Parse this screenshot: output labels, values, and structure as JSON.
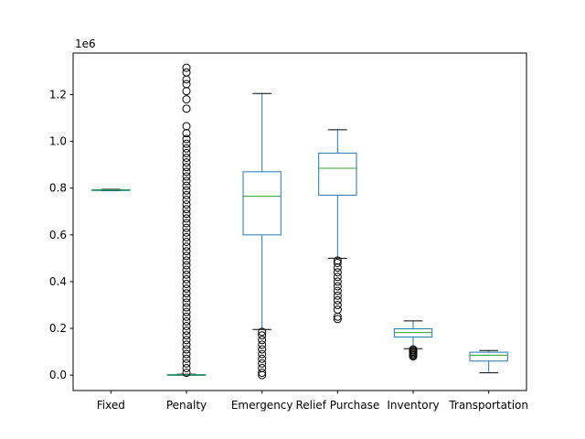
{
  "chart_data": {
    "type": "box",
    "categories": [
      "Fixed",
      "Penalty",
      "Emergency",
      "Relief Purchase",
      "Inventory",
      "Transportation"
    ],
    "y_offset_label": "1e6",
    "yticks": [
      0.0,
      0.2,
      0.4,
      0.6,
      0.8,
      1.0,
      1.2
    ],
    "yticks_text": [
      "0.0",
      "0.2",
      "0.4",
      "0.6",
      "0.8",
      "1.0",
      "1.2"
    ],
    "ylim": [
      -0.066,
      1.378
    ],
    "grid": false,
    "box_color": "#1f77b4",
    "median_color": "#2ca02c",
    "boxes": [
      {
        "name": "Fixed",
        "whislo": 0.789,
        "q1": 0.791,
        "med": 0.792,
        "q3": 0.793,
        "whishi": 0.795,
        "fliers": []
      },
      {
        "name": "Penalty",
        "whislo": 0.0,
        "q1": 0.0,
        "med": 0.001,
        "q3": 0.002,
        "whishi": 0.004,
        "fliers": [
          0.01,
          0.03,
          0.05,
          0.07,
          0.09,
          0.11,
          0.13,
          0.15,
          0.17,
          0.19,
          0.21,
          0.23,
          0.25,
          0.27,
          0.29,
          0.31,
          0.33,
          0.35,
          0.37,
          0.39,
          0.41,
          0.43,
          0.45,
          0.47,
          0.49,
          0.51,
          0.53,
          0.55,
          0.57,
          0.59,
          0.61,
          0.63,
          0.65,
          0.67,
          0.69,
          0.71,
          0.73,
          0.75,
          0.77,
          0.79,
          0.81,
          0.83,
          0.85,
          0.87,
          0.89,
          0.91,
          0.93,
          0.95,
          0.97,
          0.99,
          1.01,
          1.035,
          1.065,
          1.14,
          1.18,
          1.215,
          1.245,
          1.265,
          1.295,
          1.315
        ]
      },
      {
        "name": "Emergency",
        "whislo": 0.195,
        "q1": 0.6,
        "med": 0.765,
        "q3": 0.87,
        "whishi": 1.205,
        "fliers": [
          0.0,
          0.01,
          0.03,
          0.05,
          0.07,
          0.09,
          0.11,
          0.13,
          0.15,
          0.17,
          0.185
        ]
      },
      {
        "name": "Relief Purchase",
        "whislo": 0.5,
        "q1": 0.77,
        "med": 0.885,
        "q3": 0.95,
        "whishi": 1.05,
        "fliers": [
          0.24,
          0.25,
          0.28,
          0.3,
          0.32,
          0.34,
          0.36,
          0.38,
          0.4,
          0.42,
          0.44,
          0.46,
          0.48,
          0.49
        ]
      },
      {
        "name": "Inventory",
        "whislo": 0.113,
        "q1": 0.163,
        "med": 0.182,
        "q3": 0.198,
        "whishi": 0.232,
        "fliers": [
          0.08,
          0.085,
          0.09,
          0.095,
          0.1,
          0.105,
          0.11
        ]
      },
      {
        "name": "Transportation",
        "whislo": 0.01,
        "q1": 0.06,
        "med": 0.085,
        "q3": 0.098,
        "whishi": 0.105,
        "fliers": []
      }
    ]
  }
}
